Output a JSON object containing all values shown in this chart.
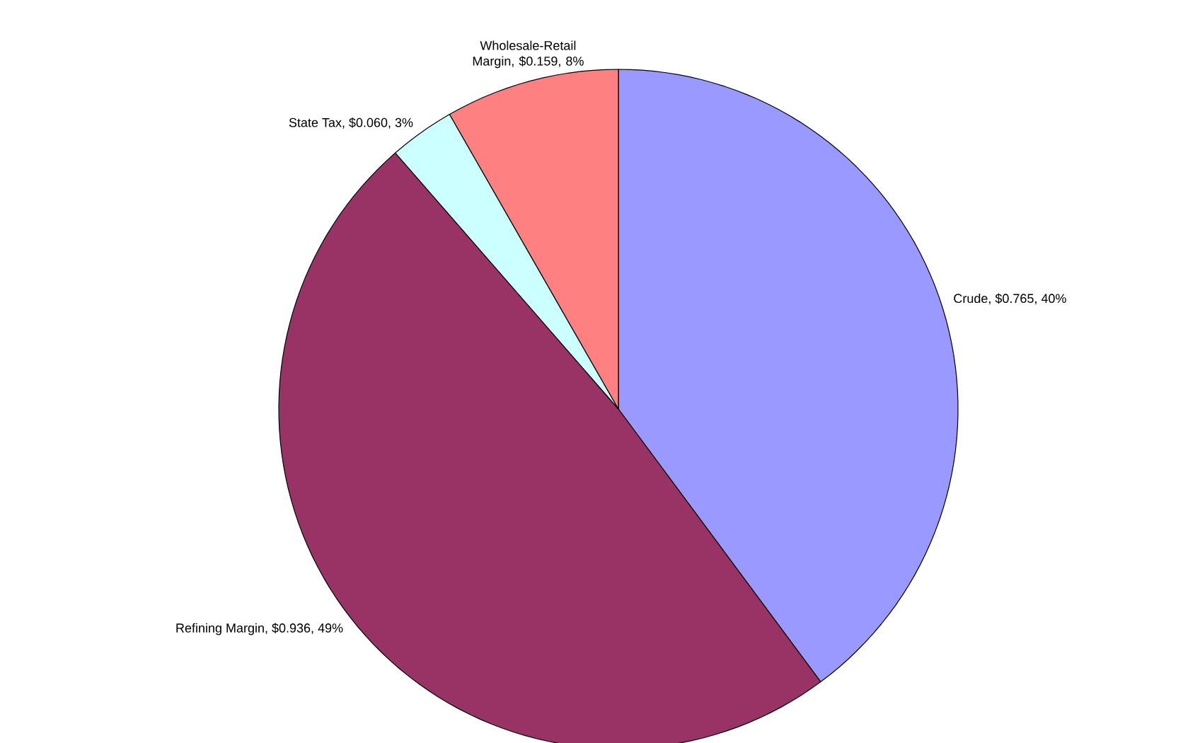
{
  "chart_data": {
    "type": "pie",
    "categories": [
      "Crude, $0.765, 40%",
      "Refining Margin, $0.936, 49%",
      "State Tax, $0.060, 3%",
      "Wholesale-Retail Margin, $0.159, 8%"
    ],
    "values": [
      0.765,
      0.936,
      0.06,
      0.159
    ],
    "colors": [
      "#9999ff",
      "#993366",
      "#ccffff",
      "#ff8080"
    ]
  }
}
